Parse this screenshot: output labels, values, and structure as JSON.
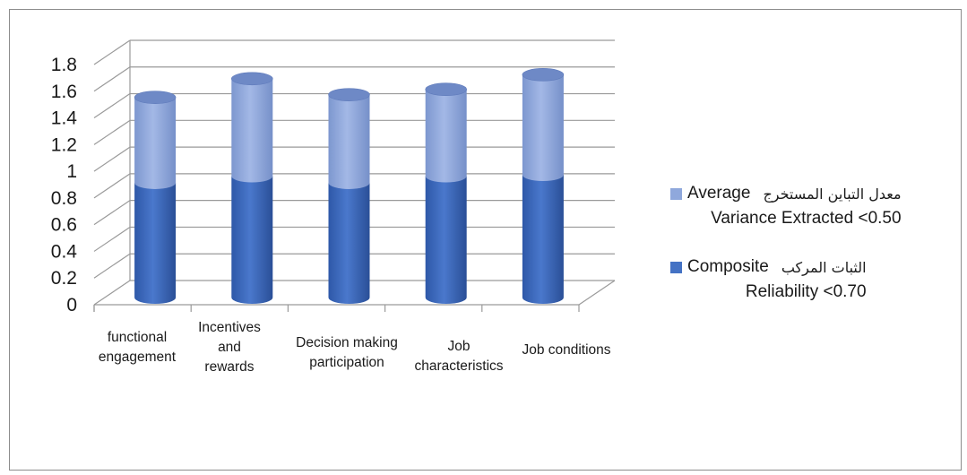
{
  "chart_data": {
    "type": "bar",
    "stacked": true,
    "style": "3d-cylinder",
    "categories": [
      [
        "functional",
        "engagement"
      ],
      [
        "Incentives",
        "and",
        "rewards"
      ],
      [
        "Decision making",
        "participation"
      ],
      [
        "Job",
        "characteristics"
      ],
      [
        "Job conditions"
      ]
    ],
    "series": [
      {
        "name": "Composite Reliability <0.70",
        "name_ar": "الثبات المركب",
        "name_en_1": "Composite",
        "name_en_2": "Reliability <0.70",
        "color": "#4472c4",
        "values": [
          0.86,
          0.91,
          0.86,
          0.91,
          0.92
        ]
      },
      {
        "name": "Average Variance Extracted <0.50",
        "name_ar": "معدل التباين المستخرج",
        "name_en_1": "Average",
        "name_en_2": "Variance Extracted <0.50",
        "color": "#8fa8dc",
        "values": [
          0.64,
          0.73,
          0.66,
          0.65,
          0.75
        ]
      }
    ],
    "yticks": [
      "0",
      "0.2",
      "0.4",
      "0.6",
      "0.8",
      "1",
      "1.2",
      "1.4",
      "1.6",
      "1.8"
    ],
    "ylim": [
      0,
      1.8
    ],
    "grid": true,
    "legend_position": "right"
  }
}
